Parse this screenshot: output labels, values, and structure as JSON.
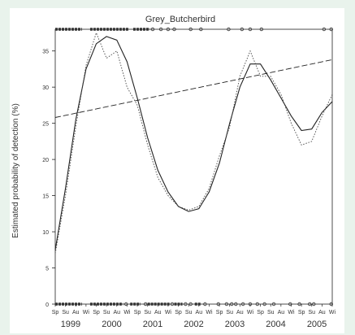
{
  "chart_data": {
    "type": "line",
    "title": "Grey_Butcherbird",
    "xlabel": "",
    "ylabel": "Estimated probability of detection (%)",
    "ylim": [
      0,
      38
    ],
    "yticks": [
      0,
      5,
      10,
      15,
      20,
      25,
      30,
      35
    ],
    "ytick_labels": [
      "0",
      "5",
      "10",
      "15",
      "20",
      "25",
      "30",
      "35"
    ],
    "season_labels": [
      "Sp",
      "Su",
      "Au",
      "Wi"
    ],
    "year_labels": [
      "1999",
      "2000",
      "2001",
      "2002",
      "2003",
      "2004",
      "2005"
    ],
    "x_unit": "season index (0 = Sp 1999, 27 = Wi 2005)",
    "series": [
      {
        "style": "solid",
        "x": [
          0,
          1,
          2,
          3,
          4,
          5,
          6,
          7,
          8,
          9,
          10,
          11,
          12,
          13,
          14,
          15,
          16,
          17,
          18,
          19,
          20,
          21,
          22,
          23,
          24,
          25,
          26,
          27
        ],
        "values": [
          7.5,
          16,
          25.5,
          32.5,
          36,
          37,
          36.5,
          33.5,
          28.5,
          23,
          18.5,
          15.5,
          13.5,
          12.8,
          13.2,
          15.5,
          19.5,
          25,
          30,
          33.2,
          33.2,
          31,
          28.5,
          26,
          24,
          24.2,
          26.5,
          28
        ]
      },
      {
        "style": "dotted",
        "x": [
          0,
          1,
          2,
          3,
          4,
          5,
          6,
          7,
          8,
          9,
          10,
          11,
          12,
          13,
          14,
          15,
          16,
          17,
          18,
          19,
          20,
          21,
          22,
          23,
          24,
          25,
          26,
          27
        ],
        "values": [
          7,
          15,
          24.5,
          33,
          37.5,
          34,
          35,
          30,
          27.5,
          22,
          17.5,
          15,
          13.5,
          13,
          13.5,
          16,
          20.5,
          24.5,
          31.5,
          35,
          31.5,
          31.5,
          29,
          25,
          22,
          22.5,
          26,
          29
        ]
      },
      {
        "style": "dashed",
        "x": [
          0,
          27
        ],
        "values": [
          25.8,
          33.8
        ]
      }
    ],
    "top_rug": {
      "dense_runs": [
        [
          0,
          2.6
        ],
        [
          3.4,
          7.2
        ],
        [
          7.6,
          9.2
        ]
      ],
      "points": [
        9.5,
        10.3,
        11.0,
        11.6,
        13.2,
        14.2,
        16.9,
        18.2,
        19.0,
        20.1,
        26.2,
        26.9
      ]
    },
    "bottom_rug": {
      "dense_runs": [
        [
          0,
          2.6
        ],
        [
          3.4,
          6.6
        ],
        [
          7.3,
          8.3
        ],
        [
          9.0,
          11.2
        ],
        [
          11.6,
          12.4
        ],
        [
          13.6,
          14.2
        ]
      ],
      "points": [
        6.9,
        8.8,
        11.4,
        12.7,
        13.2,
        14.6,
        15.9,
        16.7,
        17.2,
        17.6,
        18.3,
        19.0,
        19.7,
        20.4,
        21.3,
        22.9,
        23.8,
        24.8,
        25.2,
        26.9
      ]
    },
    "grid": false,
    "legend": "none"
  }
}
